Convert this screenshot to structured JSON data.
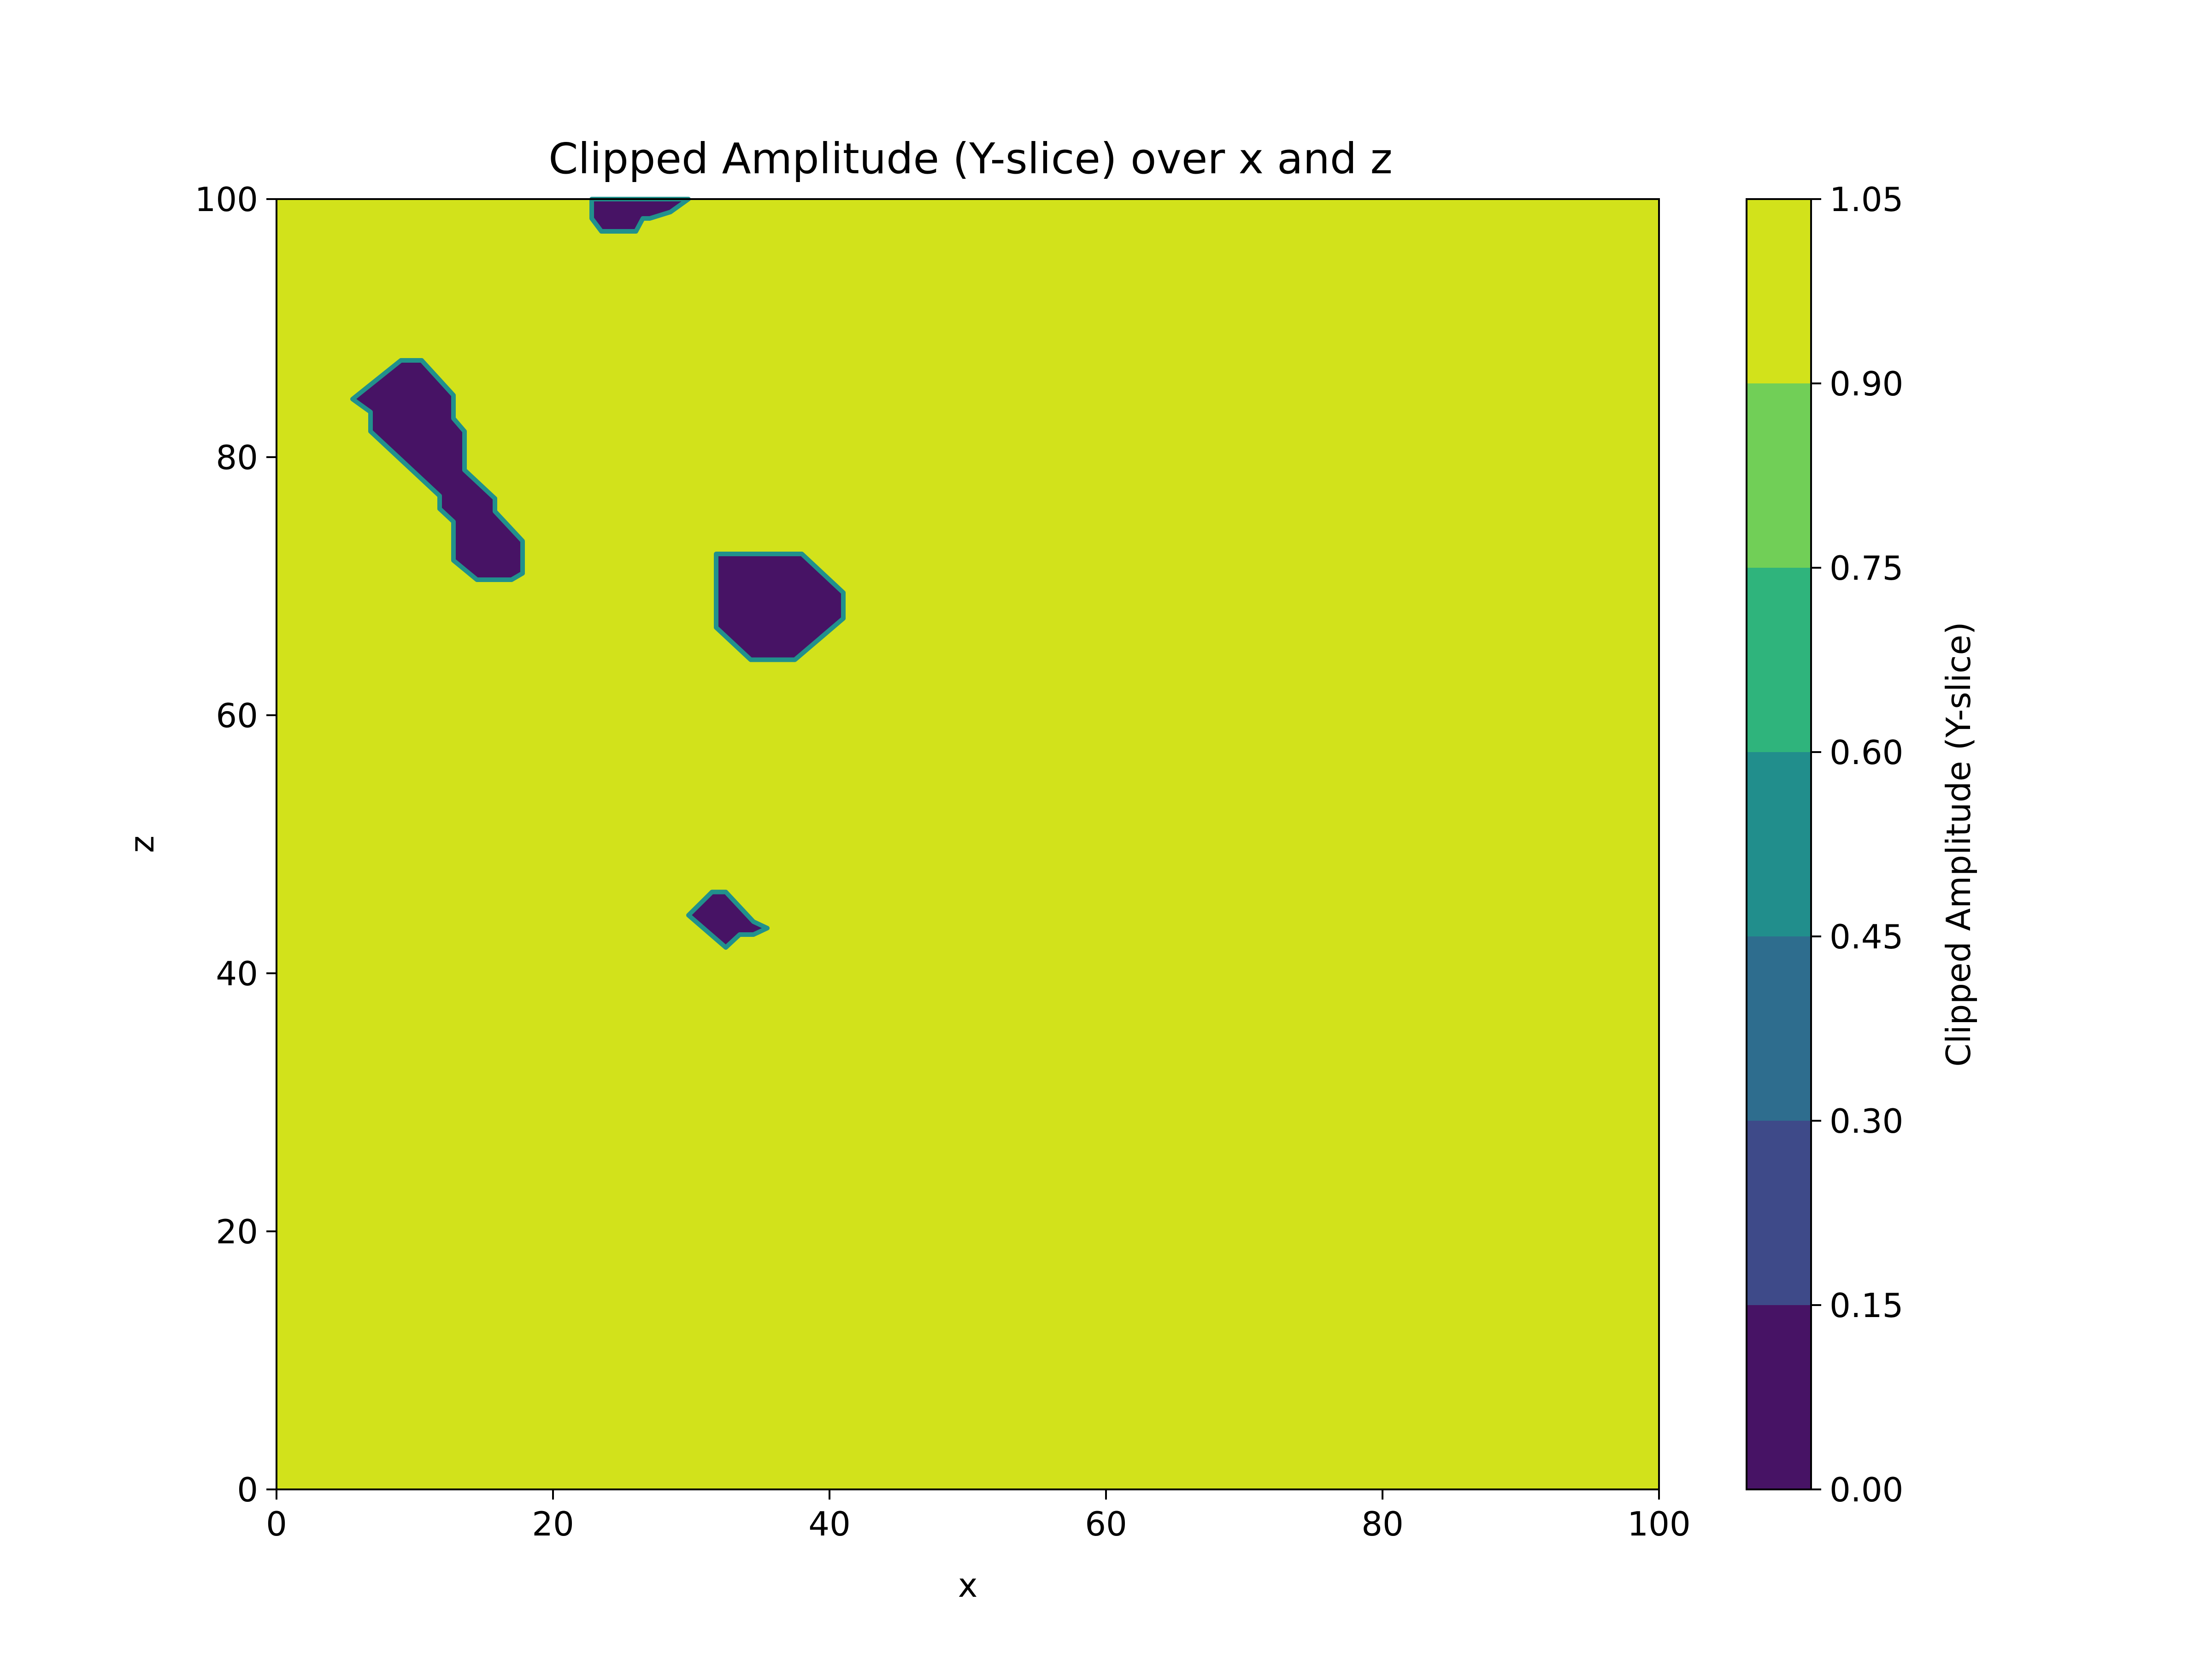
{
  "chart_data": {
    "type": "heatmap",
    "title": "Clipped Amplitude (Y-slice) over x and z",
    "xlabel": "x",
    "ylabel": "z",
    "xlim": [
      0,
      100
    ],
    "ylim": [
      0,
      100
    ],
    "x_ticks": [
      0,
      20,
      40,
      60,
      80,
      100
    ],
    "y_ticks": [
      0,
      20,
      40,
      60,
      80,
      100
    ],
    "background_value": 1.0,
    "low_value_regions": [
      {
        "value": 0.0,
        "outline": [
          [
            5.5,
            84.5
          ],
          [
            9,
            87.5
          ],
          [
            10.5,
            87.5
          ],
          [
            12.8,
            84.8
          ],
          [
            12.8,
            83
          ],
          [
            13.6,
            82
          ],
          [
            13.6,
            79
          ],
          [
            15.8,
            76.8
          ],
          [
            15.8,
            75.8
          ],
          [
            17.8,
            73.5
          ],
          [
            17.8,
            71
          ],
          [
            17,
            70.5
          ],
          [
            14.5,
            70.5
          ],
          [
            12.8,
            72
          ],
          [
            12.8,
            75
          ],
          [
            11.8,
            76
          ],
          [
            11.8,
            77
          ],
          [
            6.8,
            82
          ],
          [
            6.8,
            83.5
          ]
        ]
      },
      {
        "value": 0.0,
        "outline": [
          [
            22.8,
            100
          ],
          [
            29.8,
            100
          ],
          [
            28.5,
            99
          ],
          [
            27,
            98.5
          ],
          [
            26.5,
            98.5
          ],
          [
            26,
            97.5
          ],
          [
            23.5,
            97.5
          ],
          [
            22.8,
            98.5
          ]
        ]
      },
      {
        "value": 0.0,
        "outline": [
          [
            31.8,
            72.5
          ],
          [
            38,
            72.5
          ],
          [
            41,
            69.5
          ],
          [
            41,
            67.5
          ],
          [
            37.5,
            64.3
          ],
          [
            34.3,
            64.3
          ],
          [
            31.8,
            66.8
          ]
        ]
      },
      {
        "value": 0.0,
        "outline": [
          [
            29.8,
            44.5
          ],
          [
            31.5,
            46.3
          ],
          [
            32.5,
            46.3
          ],
          [
            34.5,
            44
          ],
          [
            35.5,
            43.5
          ],
          [
            34.5,
            43
          ],
          [
            33.5,
            43
          ],
          [
            32.5,
            42
          ]
        ]
      }
    ],
    "colorbar": {
      "label": "Clipped Amplitude (Y-slice)",
      "ticks": [
        "0.00",
        "0.15",
        "0.30",
        "0.45",
        "0.60",
        "0.75",
        "0.90",
        "1.05"
      ],
      "levels": [
        0.0,
        0.15,
        0.3,
        0.45,
        0.6,
        0.75,
        0.9,
        1.05
      ],
      "colors": [
        "#471365",
        "#3e4a89",
        "#2e6d8e",
        "#218e8c",
        "#2fb47c",
        "#71cf57",
        "#d2e21b"
      ]
    },
    "region_edge_color": "#21918c"
  }
}
